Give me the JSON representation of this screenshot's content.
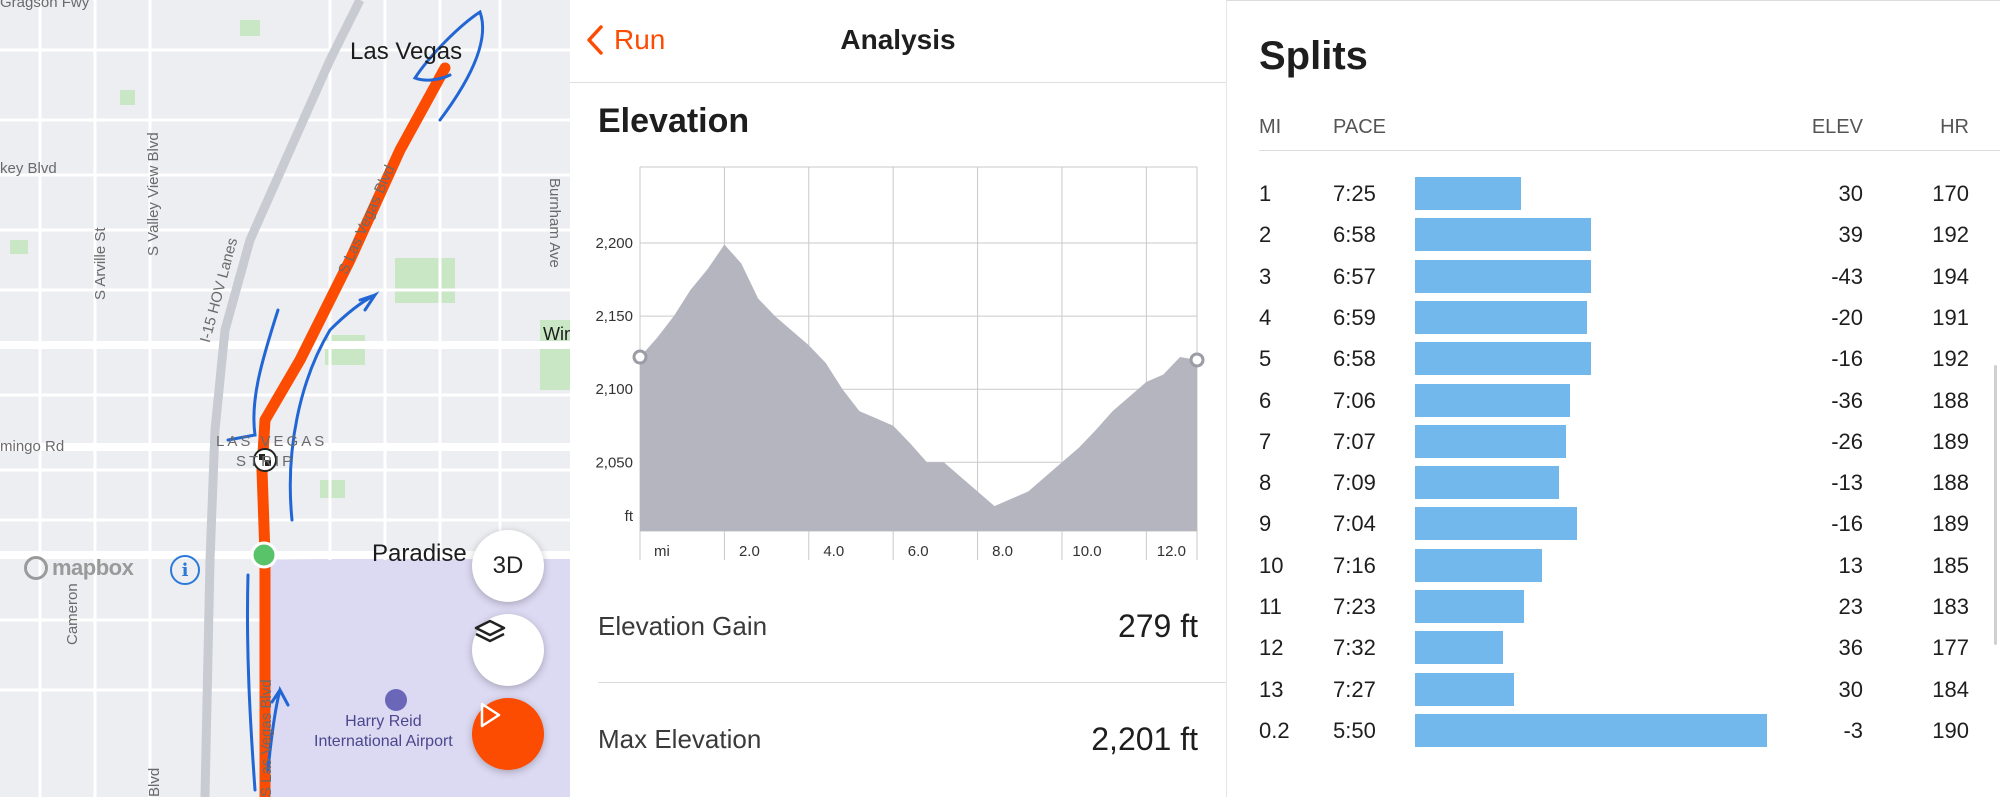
{
  "map": {
    "labels": {
      "city_las_vegas": "Las Vegas",
      "city_paradise": "Paradise",
      "strip_top": "LAS VEGAS",
      "strip_bottom": "STRIP",
      "gragson": "Gragson Fwy",
      "key_blvd": "key Blvd",
      "valley_view": "S Valley View Blvd",
      "arville": "S Arville St",
      "hov": "I-15 HOV Lanes",
      "lv_blvd_upper": "S Las Vegas Blvd",
      "lv_blvd_lower": "S Las Vegas Blvd",
      "burnham": "Burnham Ave",
      "flamingo": "mingo Rd",
      "cameron": "Cameron",
      "win": "Win",
      "airport": "Harry Reid\nInternational Airport",
      "bottom_blvd": "Blvd"
    },
    "logo_text": "mapbox",
    "info_icon": "i",
    "btn_3d": "3D",
    "colors": {
      "route": "#fc4c02",
      "annotation": "#2166d4",
      "start": "#59c36a"
    }
  },
  "analysis": {
    "back_label": "Run",
    "title": "Analysis",
    "elevation_title": "Elevation",
    "stats": [
      {
        "label": "Elevation Gain",
        "value": "279 ft"
      },
      {
        "label": "Max Elevation",
        "value": "2,201 ft"
      }
    ]
  },
  "chart_data": {
    "type": "area",
    "x_unit": "mi",
    "y_unit": "ft",
    "x_ticks": [
      "2.0",
      "4.0",
      "6.0",
      "8.0",
      "10.0",
      "12.0"
    ],
    "y_ticks": [
      "2,050",
      "2,100",
      "2,150",
      "2,200"
    ],
    "xlim": [
      0,
      13.2
    ],
    "ylim": [
      2003,
      2252
    ],
    "grid": true,
    "x": [
      0,
      0.4,
      0.8,
      1.2,
      1.6,
      2.0,
      2.4,
      2.8,
      3.2,
      3.6,
      4.0,
      4.4,
      4.8,
      5.2,
      5.6,
      6.0,
      6.4,
      6.8,
      7.2,
      7.6,
      8.0,
      8.4,
      8.8,
      9.2,
      9.6,
      10.0,
      10.4,
      10.8,
      11.2,
      11.6,
      12.0,
      12.4,
      12.8,
      13.2
    ],
    "y": [
      2122,
      2135,
      2150,
      2168,
      2182,
      2199,
      2186,
      2162,
      2150,
      2140,
      2130,
      2118,
      2100,
      2085,
      2080,
      2075,
      2063,
      2050,
      2050,
      2040,
      2030,
      2020,
      2025,
      2030,
      2040,
      2050,
      2060,
      2072,
      2085,
      2095,
      2105,
      2110,
      2122,
      2120
    ]
  },
  "splits": {
    "title": "Splits",
    "headers": {
      "mi": "MI",
      "pace": "PACE",
      "elev": "ELEV",
      "hr": "HR"
    },
    "rows": [
      {
        "mi": "1",
        "pace": "7:25",
        "pace_rel": 0.3,
        "elev": "30",
        "hr": "170"
      },
      {
        "mi": "2",
        "pace": "6:58",
        "pace_rel": 0.5,
        "elev": "39",
        "hr": "192"
      },
      {
        "mi": "3",
        "pace": "6:57",
        "pace_rel": 0.5,
        "elev": "-43",
        "hr": "194"
      },
      {
        "mi": "4",
        "pace": "6:59",
        "pace_rel": 0.49,
        "elev": "-20",
        "hr": "191"
      },
      {
        "mi": "5",
        "pace": "6:58",
        "pace_rel": 0.5,
        "elev": "-16",
        "hr": "192"
      },
      {
        "mi": "6",
        "pace": "7:06",
        "pace_rel": 0.44,
        "elev": "-36",
        "hr": "188"
      },
      {
        "mi": "7",
        "pace": "7:07",
        "pace_rel": 0.43,
        "elev": "-26",
        "hr": "189"
      },
      {
        "mi": "8",
        "pace": "7:09",
        "pace_rel": 0.41,
        "elev": "-13",
        "hr": "188"
      },
      {
        "mi": "9",
        "pace": "7:04",
        "pace_rel": 0.46,
        "elev": "-16",
        "hr": "189"
      },
      {
        "mi": "10",
        "pace": "7:16",
        "pace_rel": 0.36,
        "elev": "13",
        "hr": "185"
      },
      {
        "mi": "11",
        "pace": "7:23",
        "pace_rel": 0.31,
        "elev": "23",
        "hr": "183"
      },
      {
        "mi": "12",
        "pace": "7:32",
        "pace_rel": 0.25,
        "elev": "36",
        "hr": "177"
      },
      {
        "mi": "13",
        "pace": "7:27",
        "pace_rel": 0.28,
        "elev": "30",
        "hr": "184"
      },
      {
        "mi": "0.2",
        "pace": "5:50",
        "pace_rel": 1.0,
        "elev": "-3",
        "hr": "190"
      }
    ],
    "bar_color": "#72b8ec"
  }
}
